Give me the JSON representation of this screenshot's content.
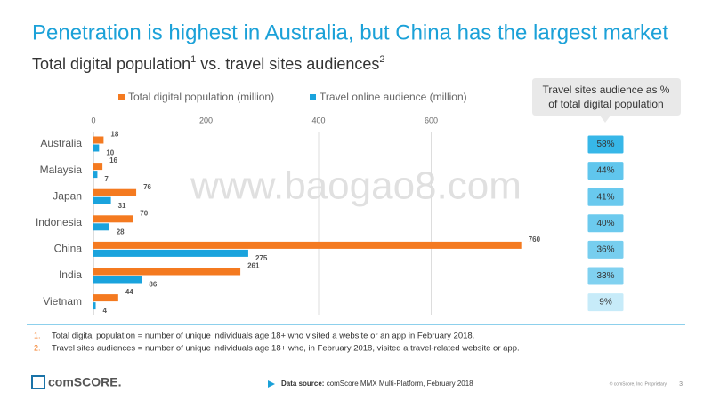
{
  "chart_data": {
    "type": "bar",
    "orientation": "horizontal",
    "title": "Penetration is highest in Australia, but China has the largest market",
    "subtitle_parts": [
      "Total digital population",
      "1",
      " vs. travel sites audiences",
      "2"
    ],
    "categories": [
      "Australia",
      "Malaysia",
      "Japan",
      "Indonesia",
      "China",
      "India",
      "Vietnam"
    ],
    "series": [
      {
        "name": "Total digital population (million)",
        "color": "#f47a20",
        "values": [
          18,
          16,
          76,
          70,
          760,
          261,
          44
        ]
      },
      {
        "name": "Travel online audience (million)",
        "color": "#1aa3dd",
        "values": [
          10,
          7,
          31,
          28,
          275,
          86,
          4
        ]
      }
    ],
    "xlim": [
      0,
      800
    ],
    "xticks": [
      0,
      200,
      400,
      600
    ],
    "grid": true,
    "share": {
      "title_lines": [
        "Travel sites audience as %",
        "of total digital population"
      ],
      "values": [
        58,
        44,
        41,
        40,
        36,
        33,
        9
      ],
      "value_labels": [
        "58%",
        "44%",
        "41%",
        "40%",
        "36%",
        "33%",
        "9%"
      ],
      "color": "#37b7e8"
    }
  },
  "footnotes": [
    {
      "number": "1.",
      "text": "Total digital population = number of unique individuals age 18+ who visited a website or an app in February 2018."
    },
    {
      "number": "2.",
      "text": "Travel sites audiences  = number of unique individuals age 18+ who, in February 2018, visited a travel-related website or app."
    }
  ],
  "footer": {
    "logo": "comSCORE.",
    "source_label": "Data source:",
    "source": " comScore MMX Multi-Platform, February 2018",
    "copyright": "© comScore, Inc. Proprietary.",
    "page": "3"
  },
  "watermark": "www.baogao8.com"
}
